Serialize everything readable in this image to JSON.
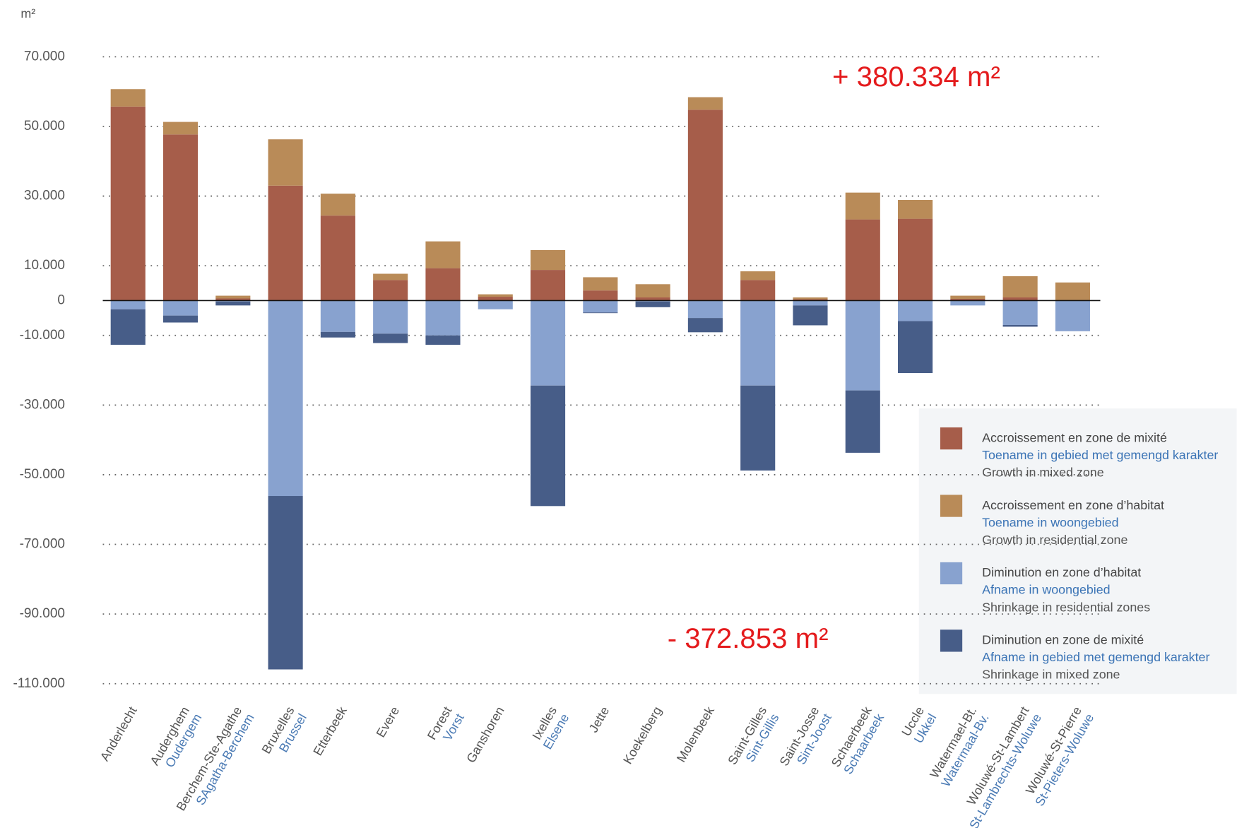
{
  "chart_data": {
    "type": "bar",
    "stacked": true,
    "y_label": "m²",
    "annotations": [
      "+ 380.334 m²",
      "- 372.853 m²"
    ],
    "categories": [
      [
        "Anderlecht"
      ],
      [
        "Auderghem",
        "Oudergem"
      ],
      [
        "Berchem-Ste-Agathe",
        "SAgatha-Berchem"
      ],
      [
        "Bruxelles",
        "Brussel"
      ],
      [
        "Etterbeek"
      ],
      [
        "Evere"
      ],
      [
        "Forest",
        "Vorst"
      ],
      [
        "Ganshoren"
      ],
      [
        "Ixelles",
        "Elsene"
      ],
      [
        "Jette"
      ],
      [
        "Koekelberg"
      ],
      [
        "Molenbeek"
      ],
      [
        "Saint-Gilles",
        "Sint-Gillis"
      ],
      [
        "Saint-Josse",
        "Sint-Joost"
      ],
      [
        "Schaerbeek",
        "Schaarbeek"
      ],
      [
        "Uccle",
        "Ukkel"
      ],
      [
        "Watermael-Bt.",
        "Watermaal-Bv."
      ],
      [
        "Woluwé-St-Lambert",
        "St-Lambrechts-Woluwe"
      ],
      [
        "Woluwé-St-Pierre",
        "St-Pieters-Woluwe"
      ]
    ],
    "series": [
      {
        "name": [
          "Accroissement en zone de mixité",
          "Toename in gebied met gemengd karakter",
          "Growth in mixed zone"
        ],
        "color": "#a65d4a",
        "values": [
          55700,
          47700,
          600,
          33000,
          24400,
          5900,
          9300,
          1100,
          8800,
          2900,
          900,
          54800,
          5900,
          400,
          23300,
          23500,
          500,
          900,
          0
        ]
      },
      {
        "name": [
          "Accroissement en zone d’habitat",
          "Toename in woongebied",
          "Growth in residential zone"
        ],
        "color": "#b98b58",
        "values": [
          5000,
          3600,
          800,
          13300,
          6300,
          1800,
          7700,
          700,
          5700,
          3800,
          3800,
          3600,
          2500,
          500,
          7700,
          5400,
          900,
          6100,
          5200
        ]
      },
      {
        "name": [
          "Diminution en zone d’habitat",
          "Afname in woongebied",
          "Shrinkage in residential zones"
        ],
        "color": "#88a2cf",
        "values": [
          -2500,
          -4300,
          -300,
          -56100,
          -9000,
          -9500,
          -10000,
          -2500,
          -24400,
          -3400,
          -300,
          -5000,
          -24400,
          -1400,
          -25800,
          -5900,
          -1400,
          -7000,
          -8800
        ]
      },
      {
        "name": [
          "Diminution en zone de mixité",
          "Afname in gebied met gemengd karakter",
          "Shrinkage in mixed zone"
        ],
        "color": "#475d88",
        "values": [
          -10200,
          -2000,
          -1100,
          -49800,
          -1600,
          -2700,
          -2700,
          0,
          -34600,
          -200,
          -1600,
          -4100,
          -24400,
          -5700,
          -17900,
          -14900,
          0,
          -500,
          0
        ]
      }
    ],
    "ylim": [
      -110000,
      70000
    ],
    "yticks": [
      {
        "value": 70000,
        "label": "70.000"
      },
      {
        "value": 50000,
        "label": "50.000"
      },
      {
        "value": 30000,
        "label": "30.000"
      },
      {
        "value": 10000,
        "label": "10.000"
      },
      0,
      {
        "value": -10000,
        "label": "-10.000"
      },
      {
        "value": -30000,
        "label": "-30.000"
      },
      {
        "value": -50000,
        "label": "-50.000"
      },
      {
        "value": -70000,
        "label": "-70.000"
      },
      {
        "value": -90000,
        "label": "-90.000"
      },
      {
        "value": -110000,
        "label": "-110.000"
      }
    ],
    "grid": true
  }
}
